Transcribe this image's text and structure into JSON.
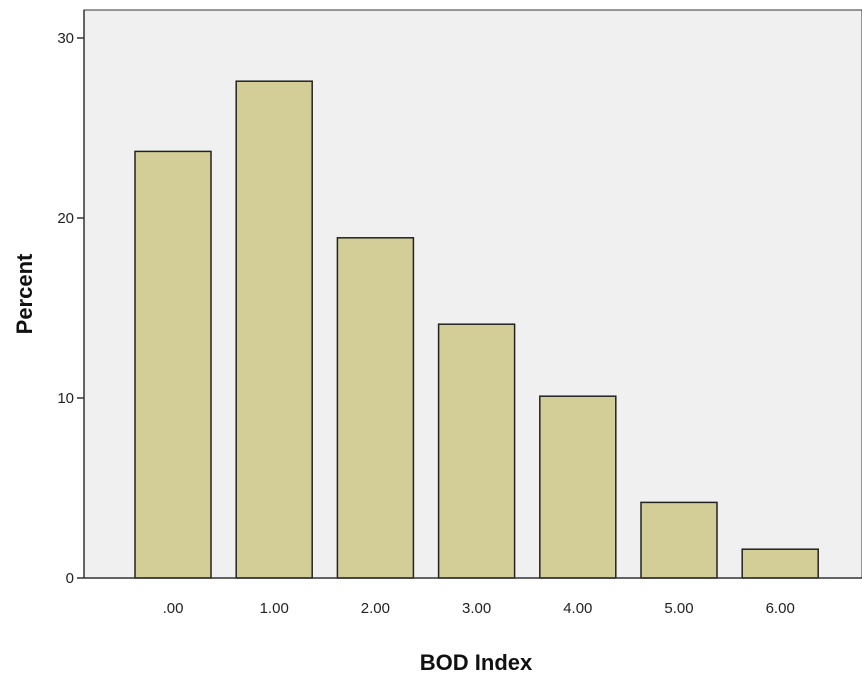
{
  "colors": {
    "plot_background": "#f0f0f0",
    "bar_fill": "#d3ce98",
    "bar_stroke": "#222222",
    "axis": "#333333"
  },
  "chart_data": {
    "type": "bar",
    "categories": [
      ".00",
      "1.00",
      "2.00",
      "3.00",
      "4.00",
      "5.00",
      "6.00"
    ],
    "values": [
      23.7,
      27.6,
      18.9,
      14.1,
      10.1,
      4.2,
      1.6
    ],
    "title": "",
    "xlabel": "BOD Index",
    "ylabel": "Percent",
    "ylim": [
      0,
      30
    ],
    "yticks": [
      "0",
      "10",
      "20",
      "30"
    ],
    "grid": false,
    "legend": "none"
  }
}
